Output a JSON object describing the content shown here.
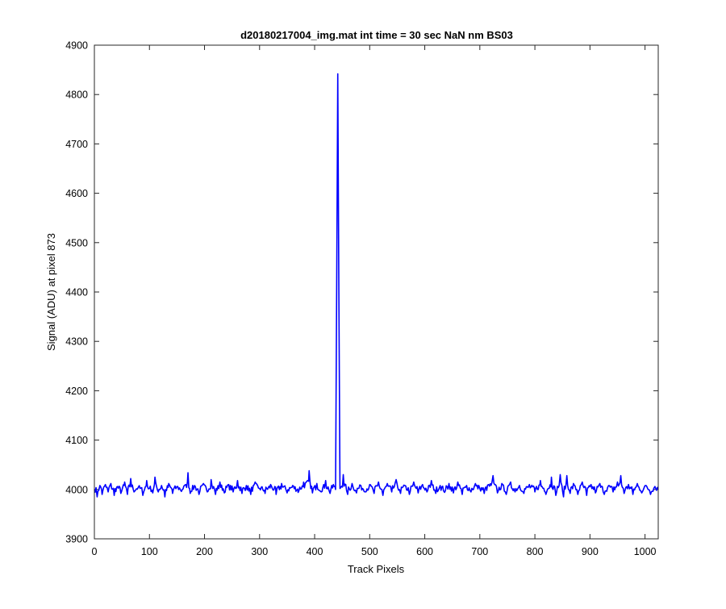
{
  "chart_data": {
    "type": "line",
    "title": "d20180217004_img.mat int time = 30 sec  NaN nm BS03",
    "xlabel": "Track Pixels",
    "ylabel": "Signal (ADU) at pixel 873",
    "xlim": [
      0,
      1024
    ],
    "ylim": [
      3900,
      4900
    ],
    "xticks": [
      0,
      100,
      200,
      300,
      400,
      500,
      600,
      700,
      800,
      900,
      1000
    ],
    "xtick_labels": [
      "0",
      "100",
      "200",
      "300",
      "400",
      "500",
      "600",
      "700",
      "800",
      "900",
      "1000"
    ],
    "yticks": [
      3900,
      4000,
      4100,
      4200,
      4300,
      4400,
      4500,
      4600,
      4700,
      4800,
      4900
    ],
    "ytick_labels": [
      "3900",
      "4000",
      "4100",
      "4200",
      "4300",
      "4400",
      "4500",
      "4600",
      "4700",
      "4800",
      "4900"
    ],
    "grid": false,
    "box": true,
    "series": [
      {
        "color": "#0000ff",
        "description": "noisy baseline ~4000 ADU (range ~3975-4038) with single spike near x=442",
        "baseline": 4003,
        "noise_amplitude": 9,
        "points": [
          [
            0,
            4000
          ],
          [
            5,
            3985
          ],
          [
            10,
            4008
          ],
          [
            14,
            3990
          ],
          [
            20,
            4010
          ],
          [
            25,
            3995
          ],
          [
            30,
            4012
          ],
          [
            36,
            3988
          ],
          [
            42,
            4006
          ],
          [
            48,
            3992
          ],
          [
            55,
            4015
          ],
          [
            60,
            3990
          ],
          [
            66,
            4022
          ],
          [
            72,
            3995
          ],
          [
            80,
            4005
          ],
          [
            88,
            3988
          ],
          [
            95,
            4018
          ],
          [
            100,
            4002
          ],
          [
            106,
            3993
          ],
          [
            110,
            4025
          ],
          [
            116,
            3995
          ],
          [
            122,
            4008
          ],
          [
            128,
            3985
          ],
          [
            135,
            4012
          ],
          [
            142,
            3992
          ],
          [
            150,
            4006
          ],
          [
            158,
            3996
          ],
          [
            166,
            4010
          ],
          [
            170,
            4034
          ],
          [
            174,
            3992
          ],
          [
            182,
            4008
          ],
          [
            190,
            3990
          ],
          [
            198,
            4012
          ],
          [
            205,
            3995
          ],
          [
            212,
            4020
          ],
          [
            220,
            3990
          ],
          [
            228,
            4015
          ],
          [
            236,
            3993
          ],
          [
            244,
            4010
          ],
          [
            252,
            3995
          ],
          [
            260,
            4018
          ],
          [
            268,
            3992
          ],
          [
            276,
            4008
          ],
          [
            284,
            3990
          ],
          [
            292,
            4015
          ],
          [
            300,
            4002
          ],
          [
            310,
            3992
          ],
          [
            320,
            4010
          ],
          [
            330,
            3990
          ],
          [
            340,
            4012
          ],
          [
            350,
            3993
          ],
          [
            360,
            4008
          ],
          [
            370,
            3994
          ],
          [
            380,
            4015
          ],
          [
            390,
            4038
          ],
          [
            396,
            3993
          ],
          [
            404,
            4012
          ],
          [
            412,
            3995
          ],
          [
            420,
            4018
          ],
          [
            428,
            3992
          ],
          [
            434,
            4010
          ],
          [
            438,
            4000
          ],
          [
            440,
            4400
          ],
          [
            442,
            4842
          ],
          [
            444,
            4400
          ],
          [
            446,
            4002
          ],
          [
            452,
            4030
          ],
          [
            460,
            3990
          ],
          [
            468,
            4012
          ],
          [
            476,
            3993
          ],
          [
            484,
            4008
          ],
          [
            492,
            3995
          ],
          [
            500,
            4010
          ],
          [
            508,
            3992
          ],
          [
            516,
            4015
          ],
          [
            524,
            3988
          ],
          [
            532,
            4012
          ],
          [
            540,
            3995
          ],
          [
            548,
            4020
          ],
          [
            556,
            3992
          ],
          [
            564,
            4008
          ],
          [
            572,
            3990
          ],
          [
            580,
            4015
          ],
          [
            588,
            3993
          ],
          [
            596,
            4010
          ],
          [
            604,
            3995
          ],
          [
            612,
            4018
          ],
          [
            620,
            3992
          ],
          [
            628,
            4008
          ],
          [
            636,
            3994
          ],
          [
            644,
            4012
          ],
          [
            652,
            3993
          ],
          [
            660,
            4015
          ],
          [
            668,
            3990
          ],
          [
            676,
            4008
          ],
          [
            684,
            3995
          ],
          [
            692,
            4012
          ],
          [
            700,
            4002
          ],
          [
            708,
            3992
          ],
          [
            716,
            4010
          ],
          [
            724,
            4028
          ],
          [
            732,
            3993
          ],
          [
            740,
            4012
          ],
          [
            748,
            3990
          ],
          [
            756,
            4015
          ],
          [
            764,
            3995
          ],
          [
            772,
            4008
          ],
          [
            780,
            3992
          ],
          [
            790,
            4010
          ],
          [
            800,
            3995
          ],
          [
            810,
            4018
          ],
          [
            820,
            3990
          ],
          [
            830,
            4025
          ],
          [
            838,
            3988
          ],
          [
            846,
            4030
          ],
          [
            852,
            3985
          ],
          [
            858,
            4028
          ],
          [
            864,
            3992
          ],
          [
            870,
            4012
          ],
          [
            878,
            3990
          ],
          [
            886,
            4015
          ],
          [
            894,
            3988
          ],
          [
            902,
            4010
          ],
          [
            910,
            3993
          ],
          [
            918,
            4012
          ],
          [
            926,
            3990
          ],
          [
            934,
            4008
          ],
          [
            942,
            3995
          ],
          [
            950,
            4015
          ],
          [
            956,
            4028
          ],
          [
            962,
            3992
          ],
          [
            970,
            4010
          ],
          [
            978,
            3990
          ],
          [
            986,
            4012
          ],
          [
            994,
            3993
          ],
          [
            1002,
            4008
          ],
          [
            1010,
            3990
          ],
          [
            1018,
            4006
          ],
          [
            1024,
            4000
          ]
        ]
      }
    ]
  }
}
